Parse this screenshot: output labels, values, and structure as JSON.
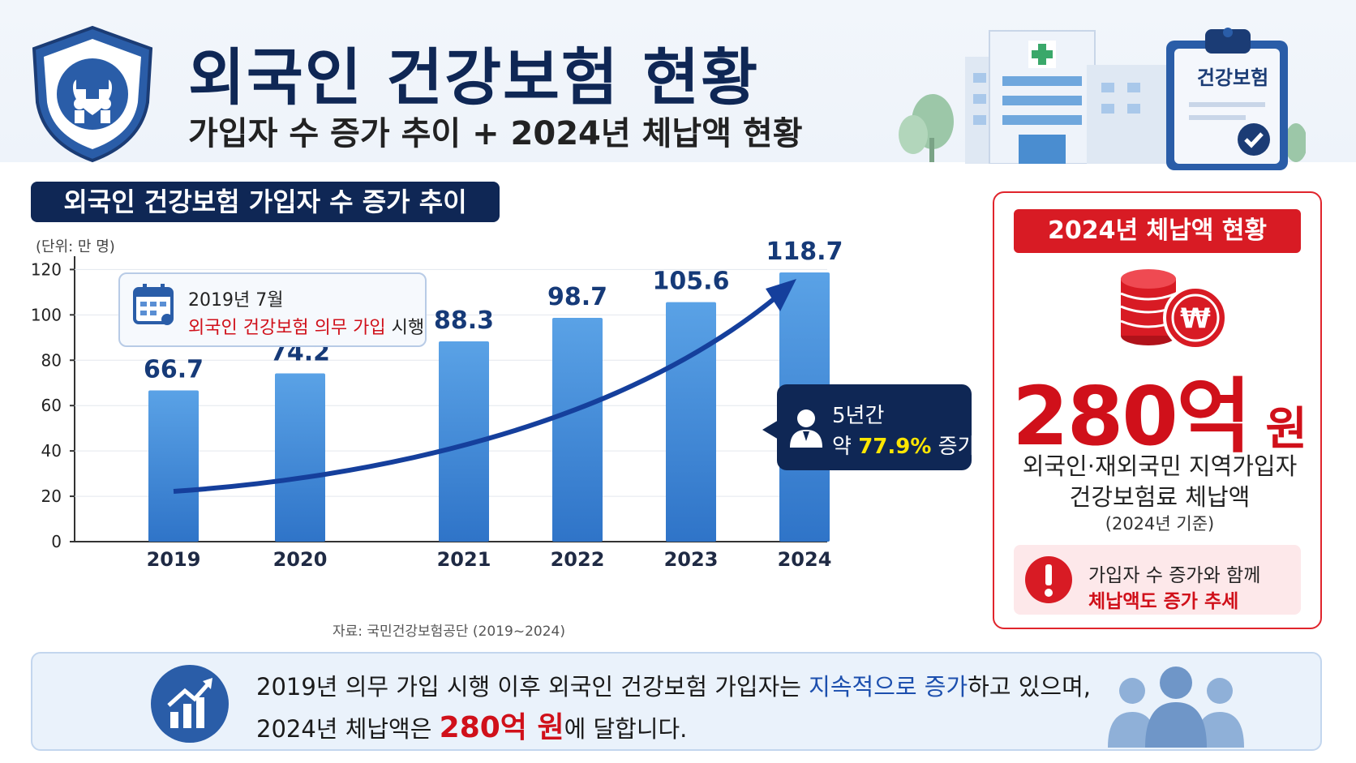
{
  "header": {
    "title": "외국인 건강보험 현황",
    "subtitle": "가입자 수 증가 추이 + 2024년 체납액 현황",
    "clipboard_label": "건강보험"
  },
  "section": {
    "title": "외국인 건강보험 가입자 수 증가 추이",
    "unit": "(단위: 만 명)"
  },
  "chart_data": {
    "type": "bar",
    "categories": [
      "2019",
      "2020",
      "2021",
      "2022",
      "2023",
      "2024"
    ],
    "values": [
      66.7,
      74.2,
      88.3,
      98.7,
      105.6,
      118.7
    ],
    "value_labels": [
      "66.7",
      "74.2",
      "88.3",
      "98.7",
      "105.6",
      "118.7"
    ],
    "yticks": [
      "0",
      "20",
      "40",
      "60",
      "80",
      "100",
      "120"
    ],
    "ylim": [
      0,
      128
    ],
    "grid": true,
    "trend_arrow": true
  },
  "note": {
    "line1": "2019년 7월",
    "line2_red": "외국인 건강보험 의무 가입",
    "line2_rest": " 시행"
  },
  "growth": {
    "line1": "5년간",
    "prefix": "약 ",
    "percent": "77.9%",
    "suffix": " 증가"
  },
  "source": "자료: 국민건강보험공단 (2019~2024)",
  "arrears": {
    "header": "2024년 체납액 현황",
    "amount_num": "280억",
    "amount_unit": " 원",
    "desc1": "외국인·재외국민 지역가입자",
    "desc2": "건강보험료 체납액",
    "desc3": "(2024년 기준)",
    "warn1": "가입자 수 증가와 함께",
    "warn2": "체납액도 증가 추세",
    "coin_symbol": "₩"
  },
  "summary": {
    "l1_a": "2019년 의무 가입 시행 이후 외국인 건강보험 가입자는 ",
    "l1_blue": "지속적으로 증가",
    "l1_b": "하고 있으며,",
    "l2_a": "2024년 체납액은 ",
    "l2_red": "280억 원",
    "l2_b": "에 달합니다."
  },
  "colors": {
    "navy": "#0f2755",
    "bar": "#3a86d8",
    "red": "#d0101a",
    "yellow": "#ffe600"
  }
}
